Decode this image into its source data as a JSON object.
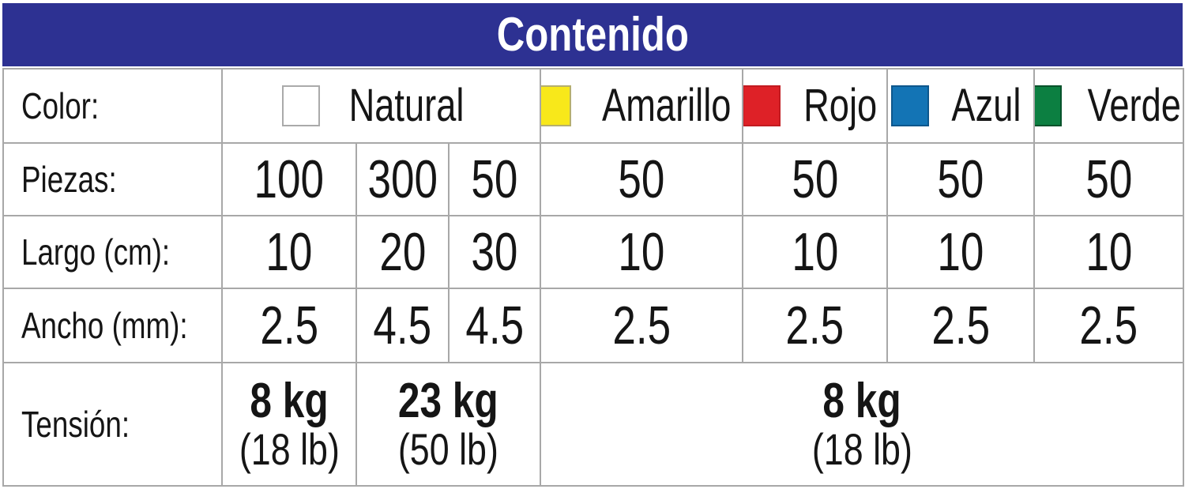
{
  "header": {
    "title": "Contenido"
  },
  "theme": {
    "header_bg": "#2D3192",
    "header_text": "#FFFFFF",
    "grid_border": "#A8A8A8",
    "text": "#151515"
  },
  "row_labels": {
    "color": "Color:",
    "piezas": "Piezas:",
    "largo": "Largo (cm):",
    "ancho": "Ancho (mm):",
    "tension": "Tensión:"
  },
  "color_options": [
    {
      "label": "Natural",
      "swatch_fill": "#FFFFFF",
      "swatch_border": "#AAAAAA"
    },
    {
      "label": "Amarillo",
      "swatch_fill": "#F8E81A",
      "swatch_border": "#B5AF6E"
    },
    {
      "label": "Rojo",
      "swatch_fill": "#DE2127",
      "swatch_border": "#C21B21"
    },
    {
      "label": "Azul",
      "swatch_fill": "#1374B5",
      "swatch_border": "#0E578C"
    },
    {
      "label": "Verde",
      "swatch_fill": "#0C7F41",
      "swatch_border": "#07522B"
    }
  ],
  "piezas": [
    "100",
    "300",
    "50",
    "50",
    "50",
    "50",
    "50"
  ],
  "largo_cm": [
    "10",
    "20",
    "30",
    "10",
    "10",
    "10",
    "10"
  ],
  "ancho_mm": [
    "2.5",
    "4.5",
    "4.5",
    "2.5",
    "2.5",
    "2.5",
    "2.5"
  ],
  "tension": [
    {
      "kg": "8 kg",
      "lb": "(18 lb)"
    },
    {
      "kg": "23 kg",
      "lb": "(50 lb)"
    },
    {
      "kg": "8 kg",
      "lb": "(18 lb)"
    }
  ],
  "chart_data": {
    "type": "table",
    "title": "Contenido",
    "rows": [
      [
        "Color:",
        "Natural",
        "Natural",
        "Natural",
        "Amarillo",
        "Rojo",
        "Azul",
        "Verde"
      ],
      [
        "Piezas:",
        100,
        300,
        50,
        50,
        50,
        50,
        50
      ],
      [
        "Largo (cm):",
        10,
        20,
        30,
        10,
        10,
        10,
        10
      ],
      [
        "Ancho (mm):",
        2.5,
        4.5,
        4.5,
        2.5,
        2.5,
        2.5,
        2.5
      ],
      [
        "Tensión:",
        "8 kg (18 lb)",
        "23 kg (50 lb)",
        "23 kg (50 lb)",
        "8 kg (18 lb)",
        "8 kg (18 lb)",
        "8 kg (18 lb)",
        "8 kg (18 lb)"
      ]
    ],
    "merged_cells": [
      {
        "row": "Color:",
        "cells": [
          "Natural x3 columns"
        ]
      },
      {
        "row": "Tensión:",
        "cells": [
          "8 kg (18 lb) x1 column",
          "23 kg (50 lb) x2 columns",
          "8 kg (18 lb) x4 columns"
        ]
      }
    ],
    "swatch_colors": {
      "Natural": "#FFFFFF",
      "Amarillo": "#F8E81A",
      "Rojo": "#DE2127",
      "Azul": "#1374B5",
      "Verde": "#0C7F41"
    }
  }
}
